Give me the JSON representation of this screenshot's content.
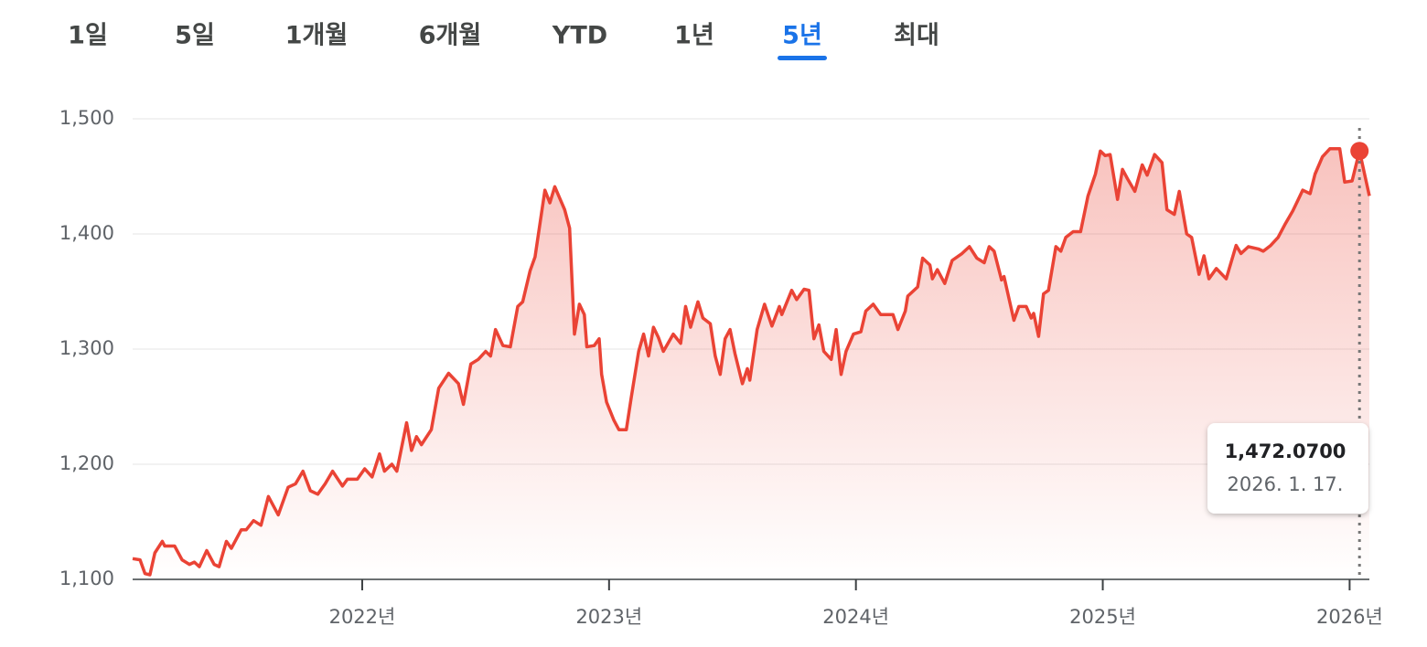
{
  "tabs": [
    {
      "label": "1일"
    },
    {
      "label": "5일"
    },
    {
      "label": "1개월"
    },
    {
      "label": "6개월"
    },
    {
      "label": "YTD"
    },
    {
      "label": "1년"
    },
    {
      "label": "5년",
      "selected": true
    },
    {
      "label": "최대"
    }
  ],
  "chart_data": {
    "type": "line",
    "color": "#ea4335",
    "grid": true,
    "x": [
      2021.07,
      2021.1,
      2021.12,
      2021.14,
      2021.16,
      2021.19,
      2021.2,
      2021.24,
      2021.27,
      2021.3,
      2021.32,
      2021.34,
      2021.37,
      2021.4,
      2021.42,
      2021.45,
      2021.47,
      2021.51,
      2021.53,
      2021.56,
      2021.59,
      2021.62,
      2021.66,
      2021.7,
      2021.73,
      2021.76,
      2021.79,
      2021.82,
      2021.85,
      2021.88,
      2021.92,
      2021.94,
      2021.98,
      2022.01,
      2022.04,
      2022.07,
      2022.09,
      2022.12,
      2022.14,
      2022.18,
      2022.2,
      2022.22,
      2022.24,
      2022.28,
      2022.31,
      2022.35,
      2022.39,
      2022.41,
      2022.44,
      2022.47,
      2022.5,
      2022.52,
      2022.54,
      2022.57,
      2022.6,
      2022.63,
      2022.65,
      2022.68,
      2022.7,
      2022.74,
      2022.76,
      2022.78,
      2022.8,
      2022.82,
      2022.84,
      2022.86,
      2022.88,
      2022.9,
      2022.91,
      2022.94,
      2022.96,
      2022.97,
      2022.99,
      2023.02,
      2023.04,
      2023.07,
      2023.09,
      2023.12,
      2023.14,
      2023.16,
      2023.18,
      2023.2,
      2023.22,
      2023.26,
      2023.29,
      2023.31,
      2023.33,
      2023.36,
      2023.38,
      2023.41,
      2023.43,
      2023.45,
      2023.47,
      2023.49,
      2023.51,
      2023.54,
      2023.56,
      2023.57,
      2023.6,
      2023.63,
      2023.66,
      2023.69,
      2023.7,
      2023.74,
      2023.76,
      2023.79,
      2023.81,
      2023.83,
      2023.85,
      2023.87,
      2023.9,
      2023.92,
      2023.94,
      2023.96,
      2023.99,
      2024.02,
      2024.04,
      2024.07,
      2024.1,
      2024.15,
      2024.17,
      2024.2,
      2024.21,
      2024.25,
      2024.27,
      2024.3,
      2024.31,
      2024.33,
      2024.36,
      2024.39,
      2024.43,
      2024.46,
      2024.49,
      2024.52,
      2024.54,
      2024.56,
      2024.59,
      2024.6,
      2024.64,
      2024.66,
      2024.69,
      2024.71,
      2024.72,
      2024.74,
      2024.76,
      2024.78,
      2024.81,
      2024.83,
      2024.85,
      2024.88,
      2024.91,
      2024.94,
      2024.97,
      2024.99,
      2025.01,
      2025.03,
      2025.06,
      2025.08,
      2025.1,
      2025.13,
      2025.16,
      2025.18,
      2025.21,
      2025.24,
      2025.26,
      2025.29,
      2025.31,
      2025.34,
      2025.36,
      2025.39,
      2025.41,
      2025.43,
      2025.46,
      2025.5,
      2025.54,
      2025.56,
      2025.59,
      2025.63,
      2025.65,
      2025.68,
      2025.71,
      2025.74,
      2025.77,
      2025.79,
      2025.81,
      2025.84,
      2025.86,
      2025.89,
      2025.92,
      2025.96,
      2025.98,
      2026.01,
      2026.04,
      2026.08
    ],
    "values": [
      1118,
      1117,
      1105,
      1104,
      1123,
      1133,
      1129,
      1129,
      1117,
      1113,
      1115,
      1111,
      1125,
      1113,
      1111,
      1133,
      1127,
      1143,
      1143,
      1151,
      1147,
      1172,
      1156,
      1180,
      1183,
      1194,
      1177,
      1174,
      1183,
      1194,
      1181,
      1187,
      1187,
      1196,
      1189,
      1209,
      1194,
      1200,
      1194,
      1236,
      1212,
      1224,
      1217,
      1230,
      1266,
      1279,
      1270,
      1252,
      1287,
      1291,
      1298,
      1294,
      1317,
      1303,
      1302,
      1337,
      1341,
      1368,
      1380,
      1438,
      1427,
      1441,
      1431,
      1421,
      1405,
      1313,
      1339,
      1330,
      1302,
      1303,
      1309,
      1278,
      1254,
      1238,
      1230,
      1230,
      1258,
      1298,
      1313,
      1294,
      1319,
      1310,
      1298,
      1313,
      1305,
      1337,
      1319,
      1341,
      1327,
      1322,
      1294,
      1278,
      1309,
      1317,
      1296,
      1270,
      1283,
      1273,
      1317,
      1339,
      1320,
      1337,
      1330,
      1351,
      1343,
      1352,
      1351,
      1309,
      1321,
      1298,
      1291,
      1317,
      1278,
      1298,
      1313,
      1315,
      1333,
      1339,
      1330,
      1330,
      1317,
      1333,
      1346,
      1354,
      1379,
      1373,
      1361,
      1369,
      1357,
      1377,
      1383,
      1389,
      1379,
      1375,
      1389,
      1385,
      1360,
      1363,
      1325,
      1337,
      1337,
      1327,
      1331,
      1311,
      1348,
      1351,
      1389,
      1385,
      1397,
      1402,
      1402,
      1433,
      1452,
      1472,
      1468,
      1469,
      1430,
      1456,
      1448,
      1437,
      1460,
      1451,
      1469,
      1462,
      1421,
      1417,
      1437,
      1400,
      1397,
      1365,
      1381,
      1361,
      1370,
      1361,
      1390,
      1383,
      1389,
      1387,
      1385,
      1390,
      1397,
      1409,
      1420,
      1429,
      1438,
      1435,
      1452,
      1467,
      1474,
      1474,
      1445,
      1446,
      1472,
      1433
    ],
    "xlim": [
      2021.07,
      2026.08
    ],
    "xticks": [
      {
        "value": 2022,
        "label": "2022년"
      },
      {
        "value": 2023,
        "label": "2023년"
      },
      {
        "value": 2024,
        "label": "2024년"
      },
      {
        "value": 2025,
        "label": "2025년"
      },
      {
        "value": 2026,
        "label": "2026년"
      }
    ],
    "ylim": [
      1100,
      1500
    ],
    "yticks": [
      {
        "value": 1100,
        "label": "1,100"
      },
      {
        "value": 1200,
        "label": "1,200"
      },
      {
        "value": 1300,
        "label": "1,300"
      },
      {
        "value": 1400,
        "label": "1,400"
      },
      {
        "value": 1500,
        "label": "1,500"
      }
    ],
    "tooltip": {
      "x": 2026.04,
      "value": 1472.07,
      "value_label": "1,472.0700",
      "date": "2026. 1. 17."
    }
  }
}
